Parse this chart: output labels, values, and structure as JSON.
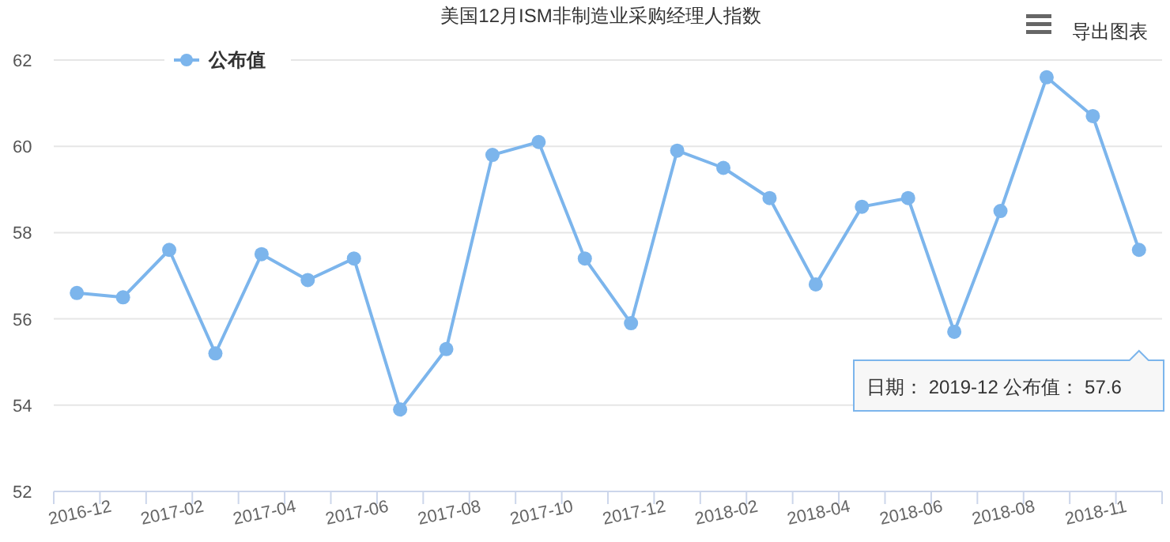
{
  "chart_data": {
    "type": "line",
    "title": "美国12月ISM非制造业采购经理人指数",
    "categories": [
      "2016-12",
      null,
      "2017-02",
      null,
      "2017-04",
      null,
      "2017-06",
      null,
      "2017-08",
      null,
      "2017-10",
      null,
      "2017-12",
      null,
      "2018-02",
      null,
      "2018-04",
      null,
      "2018-06",
      null,
      "2018-08",
      null,
      "2018-11",
      null
    ],
    "series": [
      {
        "name": "公布值",
        "color": "#7cb5ec",
        "values": [
          56.6,
          56.5,
          57.6,
          55.2,
          57.5,
          56.9,
          57.4,
          53.9,
          55.3,
          59.8,
          60.1,
          57.4,
          55.9,
          59.9,
          59.5,
          58.8,
          56.8,
          58.6,
          58.8,
          55.7,
          58.5,
          61.6,
          60.7,
          57.6
        ]
      }
    ],
    "ylim": [
      52,
      62
    ],
    "yticks": [
      52,
      54,
      56,
      58,
      60,
      62
    ],
    "grid": "y",
    "legend": "top left",
    "marker": "circle",
    "line_style": "solid",
    "annotations": [
      "日期： 2019-12 公布值： 57.6",
      "导出图表"
    ]
  }
}
